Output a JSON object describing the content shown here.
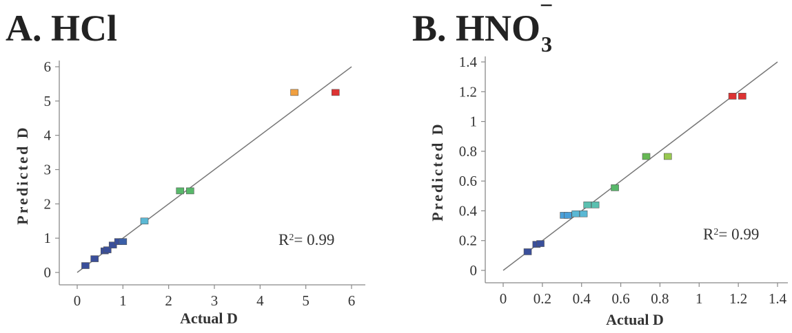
{
  "chart_data": [
    {
      "type": "scatter",
      "title": "A. HCl",
      "title_main": "A. HCl",
      "xlabel": "Actual D",
      "ylabel": "Predicted D",
      "xlim": [
        0,
        6
      ],
      "ylim": [
        0,
        6
      ],
      "xticks": [
        "0",
        "1",
        "2",
        "3",
        "4",
        "5",
        "6"
      ],
      "yticks": [
        "0",
        "1",
        "2",
        "3",
        "4",
        "5",
        "6"
      ],
      "annotation": {
        "prefix": "R",
        "sup": "2",
        "suffix": "= 0.99"
      },
      "grid": false,
      "reference_line": [
        [
          0,
          0
        ],
        [
          6,
          6
        ]
      ],
      "points": [
        {
          "x": 0.18,
          "y": 0.2,
          "color": "#3a4f9a"
        },
        {
          "x": 0.38,
          "y": 0.4,
          "color": "#3a4f9a"
        },
        {
          "x": 0.6,
          "y": 0.63,
          "color": "#3a4f9a"
        },
        {
          "x": 0.66,
          "y": 0.66,
          "color": "#3a4f9a"
        },
        {
          "x": 0.78,
          "y": 0.8,
          "color": "#3a4f9a"
        },
        {
          "x": 0.9,
          "y": 0.9,
          "color": "#3a4f9a"
        },
        {
          "x": 1.0,
          "y": 0.9,
          "color": "#3a5fa8"
        },
        {
          "x": 1.47,
          "y": 1.5,
          "color": "#5bb8d4"
        },
        {
          "x": 2.25,
          "y": 2.38,
          "color": "#58b86a"
        },
        {
          "x": 2.47,
          "y": 2.38,
          "color": "#58b86a"
        },
        {
          "x": 4.75,
          "y": 5.25,
          "color": "#f0a040"
        },
        {
          "x": 5.65,
          "y": 5.25,
          "color": "#dd3333"
        }
      ]
    },
    {
      "type": "scatter",
      "title": "B. HNO3−",
      "title_main": "B. HNO",
      "title_sub": "3",
      "title_sup": "−",
      "xlabel": "Actual D",
      "ylabel": "Predicted D",
      "xlim": [
        0,
        1.4
      ],
      "ylim": [
        0,
        1.4
      ],
      "xticks": [
        "0",
        "0.2",
        "0.4",
        "0.6",
        "0.8",
        "1",
        "1.2",
        "1.4"
      ],
      "yticks": [
        "0",
        "0.2",
        "0.4",
        "0.6",
        "0.8",
        "1",
        "1.2",
        "1.4"
      ],
      "annotation": {
        "prefix": "R",
        "sup": "2",
        "suffix": "= 0.99"
      },
      "grid": false,
      "reference_line": [
        [
          0,
          0
        ],
        [
          1.4,
          1.4
        ]
      ],
      "points": [
        {
          "x": 0.125,
          "y": 0.125,
          "color": "#3a4f9a"
        },
        {
          "x": 0.17,
          "y": 0.175,
          "color": "#3a4f9a"
        },
        {
          "x": 0.19,
          "y": 0.18,
          "color": "#3a4f9a"
        },
        {
          "x": 0.31,
          "y": 0.37,
          "color": "#4a9fd8"
        },
        {
          "x": 0.33,
          "y": 0.37,
          "color": "#4a9fd8"
        },
        {
          "x": 0.37,
          "y": 0.38,
          "color": "#5bb8d4"
        },
        {
          "x": 0.41,
          "y": 0.38,
          "color": "#5bb8d4"
        },
        {
          "x": 0.43,
          "y": 0.44,
          "color": "#5bc0b0"
        },
        {
          "x": 0.47,
          "y": 0.44,
          "color": "#5bc0b0"
        },
        {
          "x": 0.57,
          "y": 0.555,
          "color": "#58b86a"
        },
        {
          "x": 0.73,
          "y": 0.765,
          "color": "#66b854"
        },
        {
          "x": 0.84,
          "y": 0.765,
          "color": "#98c850"
        },
        {
          "x": 1.17,
          "y": 1.17,
          "color": "#dd3333"
        },
        {
          "x": 1.22,
          "y": 1.17,
          "color": "#dd3333"
        }
      ]
    }
  ]
}
